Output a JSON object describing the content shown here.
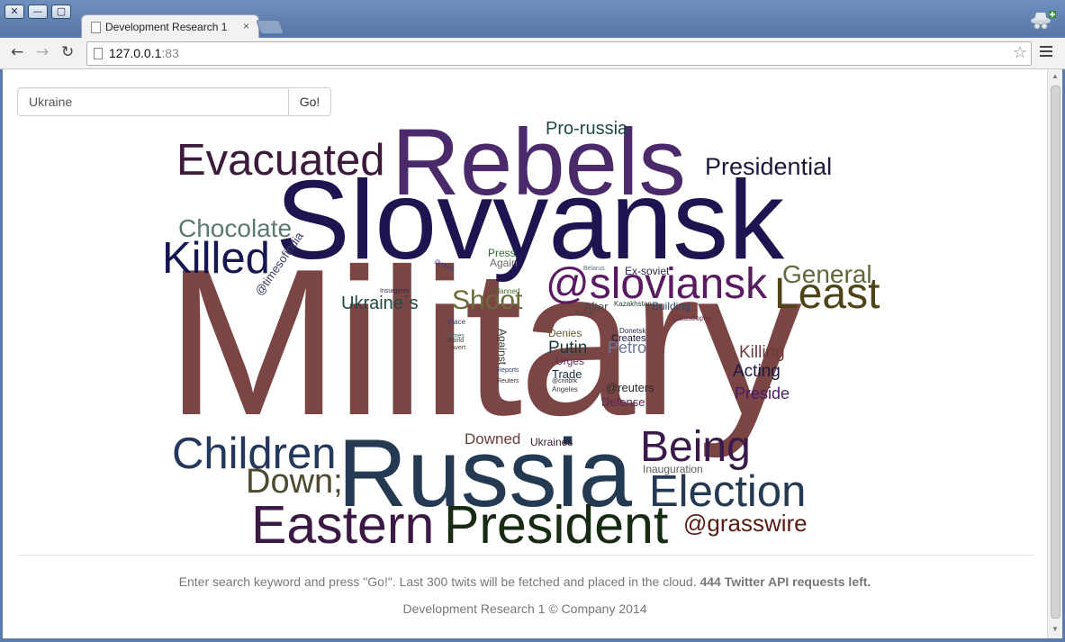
{
  "browser": {
    "tab_title": "Development Research 1",
    "tab_close": "×",
    "url_host": "127.0.0.1",
    "url_port": ":83",
    "buttons": {
      "close": "✕",
      "minimize": "—",
      "maximize": "▢",
      "back": "←",
      "forward": "→",
      "reload": "↻",
      "star": "☆"
    }
  },
  "search": {
    "value": "Ukraine",
    "button_label": "Go!"
  },
  "cloud": {
    "words": [
      {
        "text": "Military",
        "color": "#7b4544"
      },
      {
        "text": "Slovyansk",
        "color": "#1e1550"
      },
      {
        "text": "Rebels",
        "color": "#4a2a6a"
      },
      {
        "text": "Russia",
        "color": "#233a52"
      },
      {
        "text": "Evacuated",
        "color": "#3b1a3b"
      },
      {
        "text": "Presidential",
        "color": "#1a1a3a"
      },
      {
        "text": "Pro-russia",
        "color": "#1e4a46"
      },
      {
        "text": "Chocolate",
        "color": "#5c7a70"
      },
      {
        "text": "Killed",
        "color": "#151850"
      },
      {
        "text": "@sloviansk",
        "color": "#5a1a62"
      },
      {
        "text": "General",
        "color": "#5e6a3e"
      },
      {
        "text": "Least",
        "color": "#4e4418"
      },
      {
        "text": "Shoot",
        "color": "#6e6a3a"
      },
      {
        "text": "Ukraine`s",
        "color": "#1e4a44"
      },
      {
        "text": "@timesofindia",
        "color": "#3a3a6a"
      },
      {
        "text": "Children",
        "color": "#24385e"
      },
      {
        "text": "Down;",
        "color": "#4e4a30"
      },
      {
        "text": "Eastern",
        "color": "#3a1a44"
      },
      {
        "text": "President",
        "color": "#172a12"
      },
      {
        "text": "Being",
        "color": "#3a1a4a"
      },
      {
        "text": "Election",
        "color": "#233a52"
      },
      {
        "text": "@grasswire",
        "color": "#5a1a12"
      },
      {
        "text": "Killing",
        "color": "#6e3a3a"
      },
      {
        "text": "Acting",
        "color": "#1a1a44"
      },
      {
        "text": "Preside",
        "color": "#4a1a6a"
      },
      {
        "text": "Downed",
        "color": "#6a3a3a"
      },
      {
        "text": "Ukraines",
        "color": "#3a1a3a"
      },
      {
        "text": "Inauguration",
        "color": "#5a5a5a"
      },
      {
        "text": "Petro",
        "color": "#6a7a9a"
      },
      {
        "text": "Putin",
        "color": "#1a3a3a"
      },
      {
        "text": "Against",
        "color": "#3a3a2a"
      },
      {
        "text": "After",
        "color": "#4a4a4a"
      },
      {
        "text": "Building",
        "color": "#2a4a6a"
      },
      {
        "text": "Ex-soviet",
        "color": "#2a2a4a"
      },
      {
        "text": "Press",
        "color": "#2a6a2a"
      },
      {
        "text": "Again",
        "color": "#6a6a6a"
      },
      {
        "text": "Denies",
        "color": "#6a5a2a"
      },
      {
        "text": "Creates",
        "color": "#1a1a3a"
      },
      {
        "text": "Urges",
        "color": "#6a2a5a"
      },
      {
        "text": "Trade",
        "color": "#1a2a4a"
      },
      {
        "text": "@reuters",
        "color": "#2a2a2a"
      },
      {
        "text": "Defense",
        "color": "#5a2a5a"
      },
      {
        "text": "Angeles",
        "color": "#3a3a3a"
      },
      {
        "text": "Donetsk",
        "color": "#2a2a4a"
      },
      {
        "text": "Kazakhstan",
        "color": "#2a3a3a"
      },
      {
        "text": "Catastrophe",
        "color": "#6a2a4a"
      },
      {
        "text": "Planned",
        "color": "#4a6a2a"
      },
      {
        "text": "Insurgents",
        "color": "#2a2a4a"
      },
      {
        "text": "@mwiz",
        "color": "#3a3a8a"
      },
      {
        "text": "Place",
        "color": "#3a3a6a"
      },
      {
        "text": "Times",
        "color": "#3a6a6a"
      },
      {
        "text": "World",
        "color": "#3a3a3a"
      },
      {
        "text": "Avert",
        "color": "#4a3a2a"
      },
      {
        "text": "Reports",
        "color": "#2a3a6a"
      },
      {
        "text": "Reuters",
        "color": "#4a2a2a"
      },
      {
        "text": "Belarus",
        "color": "#5a6a7a"
      },
      {
        "text": "Events",
        "color": "#4a4a4a"
      },
      {
        "text": "@cnnbrk",
        "color": "#2a2a2a"
      }
    ]
  },
  "footer": {
    "info": "Enter search keyword and press \"Go!\". Last 300 twits will be fetched and placed in the cloud.",
    "requests": "444 Twitter API requests left.",
    "copyright": "Development Research 1 © Company 2014"
  }
}
